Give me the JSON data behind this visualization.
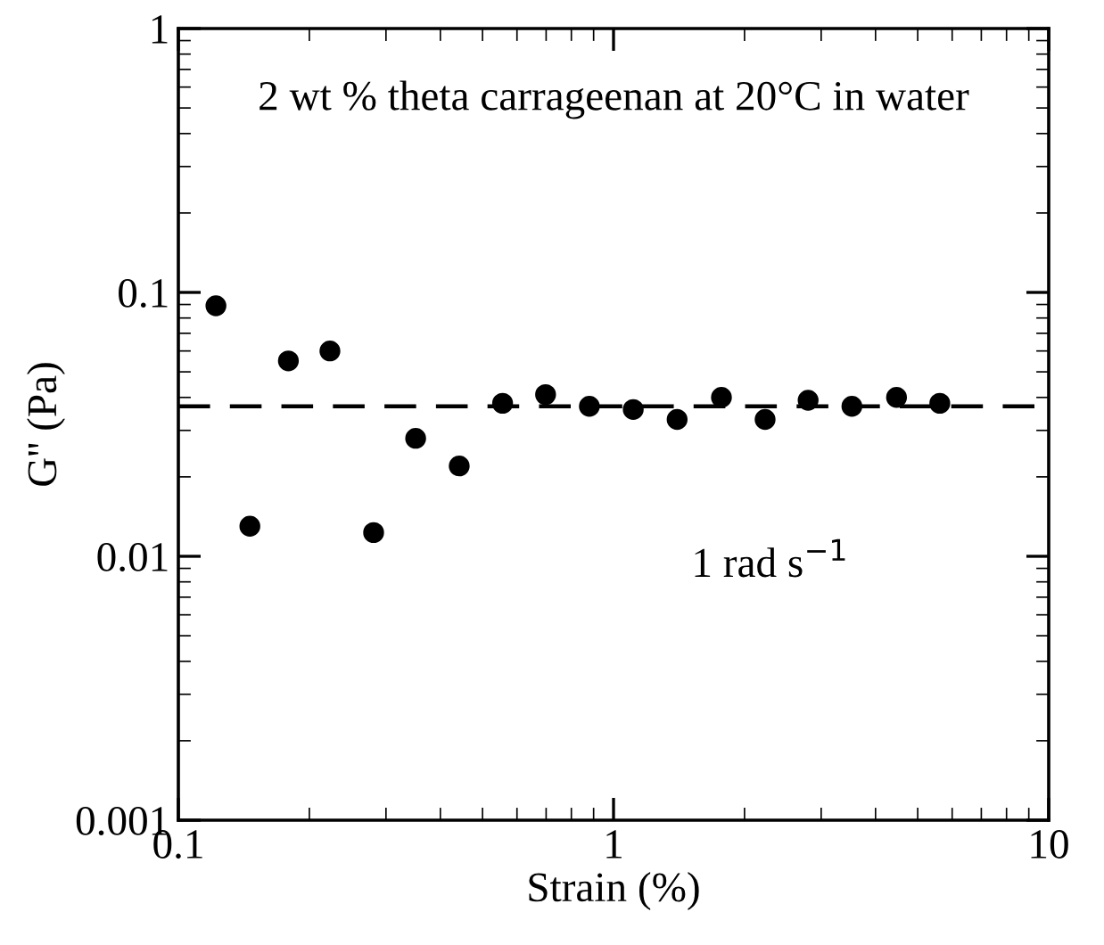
{
  "chart_data": {
    "type": "scatter",
    "xlabel": "Strain (%)",
    "ylabel": "G'' (Pa)",
    "annotations": [
      "2 wt % theta carrageenan at 20°C in water",
      "1 rad s$^{−1}$"
    ],
    "x": [
      0.122,
      0.146,
      0.179,
      0.223,
      0.281,
      0.351,
      0.442,
      0.556,
      0.698,
      0.88,
      1.11,
      1.4,
      1.77,
      2.23,
      2.8,
      3.53,
      4.47,
      5.62
    ],
    "series": [
      {
        "color": "#000000",
        "values": [
          0.089,
          0.013,
          0.055,
          0.06,
          0.0123,
          0.028,
          0.022,
          0.038,
          0.041,
          0.037,
          0.036,
          0.033,
          0.04,
          0.033,
          0.039,
          0.037,
          0.04,
          0.038
        ]
      }
    ],
    "ref_lines": [
      {
        "axis": "y",
        "value": 0.037,
        "color": "#000000",
        "line_style": "dashed"
      }
    ],
    "log": "xy",
    "xlim": [
      0.1,
      10
    ],
    "ylim": [
      0.001,
      1
    ],
    "xticks": [
      0.1,
      1,
      10
    ],
    "yticks": [
      0.001,
      0.01,
      0.1,
      1
    ],
    "marker": "circle",
    "grid": false,
    "legend": false
  }
}
